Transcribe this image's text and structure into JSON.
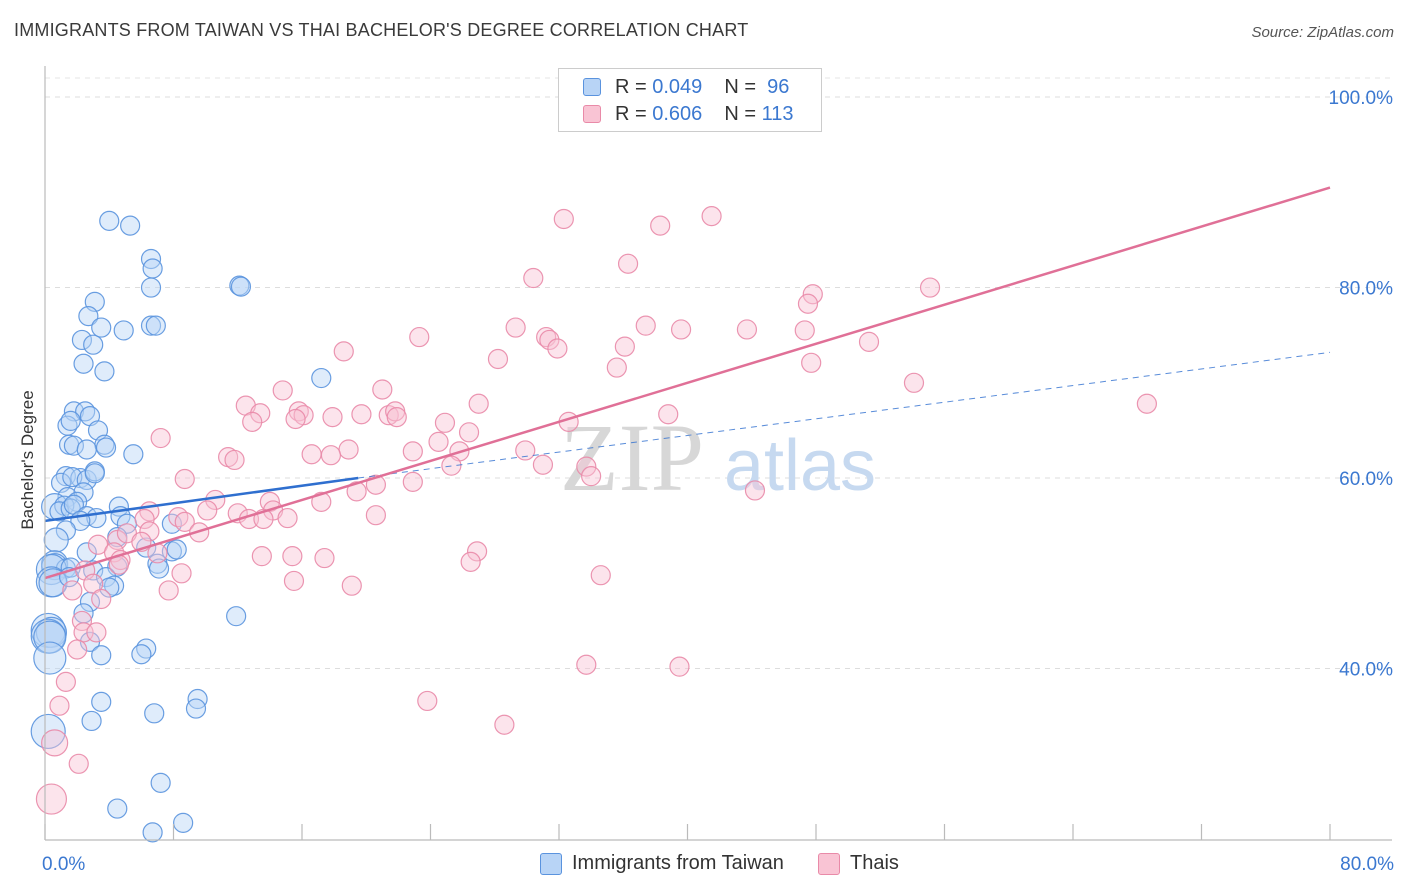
{
  "title": "IMMIGRANTS FROM TAIWAN VS THAI BACHELOR'S DEGREE CORRELATION CHART",
  "source": "Source: ZipAtlas.com",
  "watermark": {
    "zip": "ZIP",
    "atlas": "atlas"
  },
  "legend_box": {
    "r_label": "R =",
    "n_label": "N =",
    "rows": [
      {
        "r": "0.049",
        "n": "96",
        "fill": "#b8d4f6",
        "stroke": "#5a93de"
      },
      {
        "r": "0.606",
        "n": "113",
        "fill": "#f9c4d4",
        "stroke": "#e98aa8"
      }
    ]
  },
  "bottom_legend": [
    "Immigrants from Taiwan",
    "Thais"
  ],
  "chart_data": {
    "type": "scatter",
    "title": "IMMIGRANTS FROM TAIWAN VS THAI BACHELOR'S DEGREE CORRELATION CHART",
    "xlabel": "",
    "ylabel": "Bachelor's Degree",
    "xlim": [
      0,
      80
    ],
    "ylim": [
      22,
      102
    ],
    "x_ticks": [
      0,
      8,
      16,
      24,
      32,
      40,
      48,
      56,
      64,
      72,
      80
    ],
    "x_tick_labels": [
      {
        "x": 0,
        "label": "0.0%"
      },
      {
        "x": 80,
        "label": "80.0%"
      }
    ],
    "y_gridlines": [
      40,
      60,
      80,
      100
    ],
    "y_tick_labels": [
      {
        "y": 40,
        "label": "40.0%"
      },
      {
        "y": 60,
        "label": "60.0%"
      },
      {
        "y": 80,
        "label": "80.0%"
      },
      {
        "y": 100,
        "label": "100.0%"
      }
    ],
    "series": [
      {
        "name": "Immigrants from Taiwan",
        "color": "#5a93de",
        "fill": "#b8d4f6",
        "trend": {
          "x0": 0,
          "y0": 55.5,
          "x1": 19.5,
          "y1": 60,
          "dash_x1": 80,
          "dash_y1": 73.2,
          "color": "#2f6fcf"
        },
        "points": [
          [
            4.0,
            87
          ],
          [
            5.3,
            86.5
          ],
          [
            6.6,
            83
          ],
          [
            6.7,
            82
          ],
          [
            6.6,
            80
          ],
          [
            12.1,
            80.2
          ],
          [
            12.2,
            80.1
          ],
          [
            3.1,
            78.5
          ],
          [
            2.7,
            77
          ],
          [
            4.9,
            75.5
          ],
          [
            6.6,
            76
          ],
          [
            6.9,
            76
          ],
          [
            2.3,
            74.5
          ],
          [
            3.0,
            74
          ],
          [
            3.5,
            75.8
          ],
          [
            2.4,
            72
          ],
          [
            3.7,
            71.2
          ],
          [
            17.2,
            70.5
          ],
          [
            1.8,
            67
          ],
          [
            2.5,
            67
          ],
          [
            1.4,
            65.5
          ],
          [
            1.6,
            66
          ],
          [
            2.8,
            66.5
          ],
          [
            3.3,
            65
          ],
          [
            1.5,
            63.5
          ],
          [
            1.8,
            63.4
          ],
          [
            3.7,
            63.5
          ],
          [
            3.8,
            63.2
          ],
          [
            2.6,
            63
          ],
          [
            5.5,
            62.5
          ],
          [
            1.3,
            60.2
          ],
          [
            1.0,
            59.5
          ],
          [
            2.2,
            60
          ],
          [
            1.7,
            60.1
          ],
          [
            2.6,
            59.8
          ],
          [
            3.1,
            60.7
          ],
          [
            3.1,
            60.5
          ],
          [
            1.4,
            58
          ],
          [
            2.4,
            58.5
          ],
          [
            2.0,
            57.5
          ],
          [
            0.6,
            57
          ],
          [
            1.2,
            57.1
          ],
          [
            0.9,
            56.5
          ],
          [
            1.6,
            56.8
          ],
          [
            1.8,
            57.2
          ],
          [
            4.6,
            57
          ],
          [
            2.6,
            56
          ],
          [
            3.2,
            55.8
          ],
          [
            4.7,
            56
          ],
          [
            5.1,
            55.2
          ],
          [
            2.2,
            55.5
          ],
          [
            1.3,
            54.5
          ],
          [
            4.5,
            53.8
          ],
          [
            0.7,
            53.5
          ],
          [
            7.9,
            55.2
          ],
          [
            6.3,
            52.7
          ],
          [
            7.9,
            52.3
          ],
          [
            8.2,
            52.5
          ],
          [
            2.6,
            52.2
          ],
          [
            0.6,
            51
          ],
          [
            0.6,
            50.7
          ],
          [
            1.3,
            50.5
          ],
          [
            0.4,
            50.4
          ],
          [
            1.6,
            50.6
          ],
          [
            4.5,
            50.7
          ],
          [
            3.0,
            50.3
          ],
          [
            3.8,
            49.6
          ],
          [
            7.0,
            51
          ],
          [
            7.1,
            50.5
          ],
          [
            0.4,
            49.1
          ],
          [
            0.5,
            49
          ],
          [
            1.5,
            49.6
          ],
          [
            4.3,
            48.7
          ],
          [
            4.0,
            48.5
          ],
          [
            2.8,
            47
          ],
          [
            2.4,
            45.8
          ],
          [
            11.9,
            45.5
          ],
          [
            0.2,
            44
          ],
          [
            0.4,
            43.8
          ],
          [
            0.2,
            43.4
          ],
          [
            0.3,
            43.3
          ],
          [
            2.8,
            42.8
          ],
          [
            6.3,
            42.1
          ],
          [
            3.5,
            41.4
          ],
          [
            6.0,
            41.5
          ],
          [
            0.3,
            41.1
          ],
          [
            3.5,
            36.5
          ],
          [
            9.5,
            36.8
          ],
          [
            9.4,
            35.8
          ],
          [
            6.8,
            35.3
          ],
          [
            2.9,
            34.5
          ],
          [
            0.2,
            33.4
          ],
          [
            7.2,
            28
          ],
          [
            4.5,
            25.3
          ],
          [
            8.6,
            23.8
          ],
          [
            6.7,
            22.8
          ]
        ]
      },
      {
        "name": "Thais",
        "color": "#e98aa8",
        "fill": "#f9c4d4",
        "trend": {
          "x0": 0,
          "y0": 49.5,
          "x1": 80,
          "y1": 90.5,
          "color": "#e07097"
        },
        "points": [
          [
            41.5,
            87.5
          ],
          [
            32.3,
            87.2
          ],
          [
            38.3,
            86.5
          ],
          [
            36.3,
            82.5
          ],
          [
            30.4,
            81
          ],
          [
            55.1,
            80
          ],
          [
            47.8,
            79.3
          ],
          [
            47.5,
            78.3
          ],
          [
            29.3,
            75.8
          ],
          [
            37.4,
            76
          ],
          [
            39.6,
            75.6
          ],
          [
            43.7,
            75.6
          ],
          [
            47.3,
            75.5
          ],
          [
            23.3,
            74.8
          ],
          [
            31.2,
            74.8
          ],
          [
            31.4,
            74.5
          ],
          [
            51.3,
            74.3
          ],
          [
            36.1,
            73.8
          ],
          [
            31.9,
            73.6
          ],
          [
            18.6,
            73.3
          ],
          [
            28.2,
            72.5
          ],
          [
            47.7,
            72.1
          ],
          [
            35.6,
            71.6
          ],
          [
            54.1,
            70
          ],
          [
            21.0,
            69.3
          ],
          [
            14.8,
            69.2
          ],
          [
            27.0,
            67.8
          ],
          [
            12.5,
            67.6
          ],
          [
            13.4,
            66.8
          ],
          [
            15.8,
            67
          ],
          [
            16.1,
            66.6
          ],
          [
            21.4,
            66.6
          ],
          [
            21.8,
            67
          ],
          [
            68.6,
            67.8
          ],
          [
            12.9,
            65.9
          ],
          [
            15.6,
            66.2
          ],
          [
            17.9,
            66.4
          ],
          [
            19.7,
            66.7
          ],
          [
            21.9,
            66.4
          ],
          [
            24.9,
            65.8
          ],
          [
            26.4,
            64.8
          ],
          [
            32.6,
            65.9
          ],
          [
            38.8,
            66.7
          ],
          [
            7.2,
            64.2
          ],
          [
            24.5,
            63.8
          ],
          [
            18.9,
            63
          ],
          [
            16.6,
            62.5
          ],
          [
            17.8,
            62.4
          ],
          [
            22.9,
            62.8
          ],
          [
            25.8,
            62.8
          ],
          [
            29.9,
            62.9
          ],
          [
            11.4,
            62.2
          ],
          [
            11.8,
            61.9
          ],
          [
            25.3,
            61.3
          ],
          [
            31.0,
            61.4
          ],
          [
            33.7,
            61.2
          ],
          [
            20.6,
            59.3
          ],
          [
            22.9,
            59.6
          ],
          [
            34.0,
            60.2
          ],
          [
            44.2,
            58.7
          ],
          [
            19.4,
            58.6
          ],
          [
            17.2,
            57.5
          ],
          [
            8.7,
            59.9
          ],
          [
            10.6,
            57.7
          ],
          [
            14.0,
            57.5
          ],
          [
            6.5,
            56.5
          ],
          [
            10.1,
            56.6
          ],
          [
            12.0,
            56.3
          ],
          [
            14.2,
            56.6
          ],
          [
            6.2,
            55.7
          ],
          [
            8.3,
            55.9
          ],
          [
            8.7,
            55.4
          ],
          [
            12.7,
            55.7
          ],
          [
            13.6,
            55.7
          ],
          [
            15.1,
            55.8
          ],
          [
            20.6,
            56.1
          ],
          [
            6.5,
            54.4
          ],
          [
            9.6,
            54.3
          ],
          [
            4.5,
            53.5
          ],
          [
            5.1,
            54.2
          ],
          [
            6.0,
            53.3
          ],
          [
            3.3,
            53
          ],
          [
            4.3,
            52.2
          ],
          [
            7.0,
            52.1
          ],
          [
            4.7,
            51.4
          ],
          [
            4.6,
            50.9
          ],
          [
            8.5,
            50
          ],
          [
            13.5,
            51.8
          ],
          [
            15.4,
            51.8
          ],
          [
            17.4,
            51.6
          ],
          [
            26.9,
            52.3
          ],
          [
            26.5,
            51.2
          ],
          [
            2.5,
            50.3
          ],
          [
            15.5,
            49.2
          ],
          [
            19.1,
            48.7
          ],
          [
            7.7,
            48.2
          ],
          [
            1.7,
            48.2
          ],
          [
            3.0,
            48.9
          ],
          [
            3.5,
            47.3
          ],
          [
            34.6,
            49.8
          ],
          [
            2.3,
            45
          ],
          [
            2.4,
            43.8
          ],
          [
            3.2,
            43.8
          ],
          [
            2.0,
            42
          ],
          [
            33.7,
            40.4
          ],
          [
            39.5,
            40.2
          ],
          [
            1.3,
            38.6
          ],
          [
            23.8,
            36.6
          ],
          [
            0.9,
            36.1
          ],
          [
            28.6,
            34.1
          ],
          [
            0.6,
            32.2
          ],
          [
            0.4,
            26.3
          ],
          [
            2.1,
            30
          ]
        ]
      }
    ]
  }
}
